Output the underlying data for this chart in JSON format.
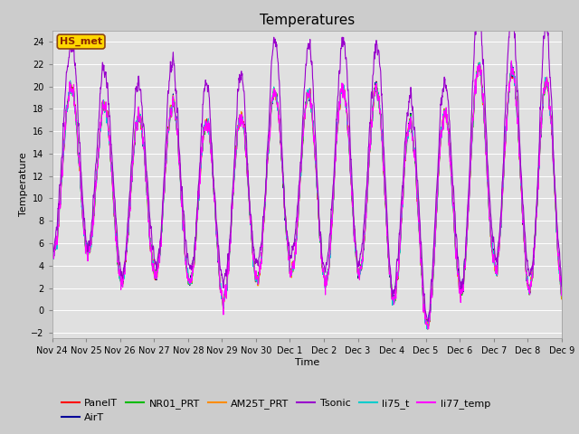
{
  "title": "Temperatures",
  "xlabel": "Time",
  "ylabel": "Temperature",
  "ylim": [
    -2.5,
    25
  ],
  "yticks": [
    -2,
    0,
    2,
    4,
    6,
    8,
    10,
    12,
    14,
    16,
    18,
    20,
    22,
    24
  ],
  "annotation_text": "HS_met",
  "annotation_color": "#8B2500",
  "annotation_bg": "#FFD700",
  "annotation_border": "#8B4513",
  "series_colors": {
    "PanelT": "#FF0000",
    "AirT": "#000099",
    "NR01_PRT": "#00BB00",
    "AM25T_PRT": "#FF8C00",
    "Tsonic": "#9900CC",
    "li75_t": "#00CCCC",
    "li77_temp": "#FF00FF"
  },
  "background_color": "#CCCCCC",
  "plot_bg": "#E0E0E0",
  "grid_color": "#FFFFFF",
  "font_color": "#000000",
  "title_fontsize": 11,
  "label_fontsize": 8,
  "tick_fontsize": 7,
  "legend_fontsize": 8,
  "line_width": 0.8,
  "xtick_labels": [
    "Nov 24",
    "Nov 25",
    "Nov 26",
    "Nov 27",
    "Nov 28",
    "Nov 29",
    "Nov 30",
    "Dec 1",
    "Dec 2",
    "Dec 3",
    "Dec 4",
    "Dec 5",
    "Dec 6",
    "Dec 7",
    "Dec 8",
    "Dec 9"
  ]
}
